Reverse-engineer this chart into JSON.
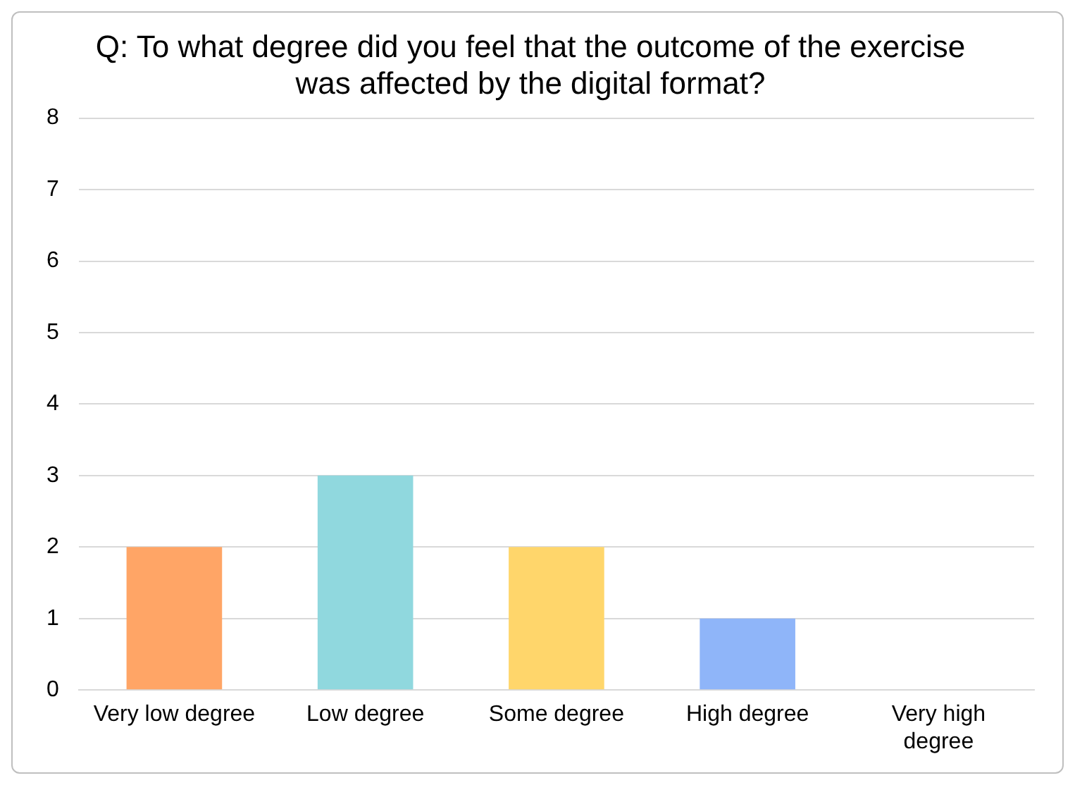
{
  "chart_data": {
    "type": "bar",
    "title": "Q: To what degree did you feel that the outcome of the exercise was affected by the digital format?",
    "categories": [
      "Very low degree",
      "Low degree",
      "Some degree",
      "High degree",
      "Very high degree"
    ],
    "values": [
      2,
      3,
      2,
      1,
      0
    ],
    "colors": [
      "#ffa566",
      "#90d8de",
      "#ffd66b",
      "#8fb5f9",
      "#b4a7d6"
    ],
    "ylim": [
      0,
      8
    ],
    "yticks": [
      0,
      1,
      2,
      3,
      4,
      5,
      6,
      7,
      8
    ],
    "grid": "y",
    "legend": false
  }
}
